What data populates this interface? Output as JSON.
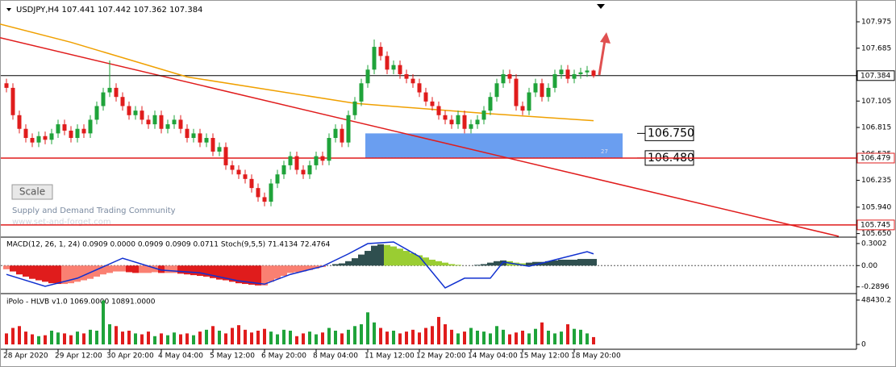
{
  "chart_data": {
    "type": "candlestick",
    "header": "USDJPY,H4  107.441 107.442 107.362 107.384",
    "scale_button": "Scale",
    "watermark": [
      "Supply and Demand Trading Community",
      "www.set-and-forget.com"
    ],
    "ylim": [
      105.62,
      108.17
    ],
    "yticks": [
      107.975,
      107.685,
      107.105,
      106.815,
      106.525,
      106.235,
      {
        "value": 105.94,
        "label": "105.940"
      },
      {
        "value": 105.65,
        "label": "105.650"
      }
    ],
    "xticks": [
      {
        "value": 0,
        "label": "28 Apr 2020"
      },
      {
        "value": 8,
        "label": "29 Apr 12:00"
      },
      {
        "value": 16,
        "label": "30 Apr 20:00"
      },
      {
        "value": 24,
        "label": "4 May 04:00"
      },
      {
        "value": 32,
        "label": "5 May 12:00"
      },
      {
        "value": 40,
        "label": "6 May 20:00"
      },
      {
        "value": 48,
        "label": "8 May 04:00"
      },
      {
        "value": 56,
        "label": "11 May 12:00"
      },
      {
        "value": 64,
        "label": "12 May 20:00"
      },
      {
        "value": 72,
        "label": "14 May 04:00"
      },
      {
        "value": 80,
        "label": "15 May 12:00"
      },
      {
        "value": 88,
        "label": "18 May 20:00"
      }
    ],
    "up_color": "#1fa33a",
    "down_color": "#e01c1c",
    "candles": [
      [
        107.3,
        107.35,
        107.2,
        107.25
      ],
      [
        107.25,
        107.3,
        106.9,
        106.95
      ],
      [
        106.95,
        107.0,
        106.75,
        106.8
      ],
      [
        106.8,
        106.85,
        106.65,
        106.7
      ],
      [
        106.7,
        106.75,
        106.6,
        106.65
      ],
      [
        106.65,
        106.77,
        106.6,
        106.72
      ],
      [
        106.72,
        106.77,
        106.63,
        106.68
      ],
      [
        106.68,
        106.8,
        106.63,
        106.75
      ],
      [
        106.75,
        106.9,
        106.7,
        106.85
      ],
      [
        106.85,
        106.9,
        106.73,
        106.78
      ],
      [
        106.78,
        106.83,
        106.65,
        106.7
      ],
      [
        106.7,
        106.85,
        106.65,
        106.8
      ],
      [
        106.8,
        106.85,
        106.7,
        106.75
      ],
      [
        106.75,
        106.95,
        106.7,
        106.9
      ],
      [
        106.9,
        107.1,
        106.85,
        107.05
      ],
      [
        107.05,
        107.25,
        107.0,
        107.2
      ],
      [
        107.2,
        107.55,
        107.15,
        107.25
      ],
      [
        107.25,
        107.3,
        107.1,
        107.15
      ],
      [
        107.15,
        107.2,
        107.0,
        107.05
      ],
      [
        107.05,
        107.1,
        106.9,
        106.95
      ],
      [
        106.95,
        107.05,
        106.9,
        107.0
      ],
      [
        107.0,
        107.05,
        106.85,
        106.9
      ],
      [
        106.9,
        106.95,
        106.8,
        106.85
      ],
      [
        106.85,
        107.0,
        106.8,
        106.95
      ],
      [
        106.95,
        107.0,
        106.75,
        106.8
      ],
      [
        106.8,
        106.9,
        106.75,
        106.85
      ],
      [
        106.85,
        106.95,
        106.8,
        106.9
      ],
      [
        106.9,
        106.95,
        106.75,
        106.8
      ],
      [
        106.8,
        106.85,
        106.65,
        106.7
      ],
      [
        106.7,
        106.8,
        106.65,
        106.75
      ],
      [
        106.75,
        106.8,
        106.6,
        106.65
      ],
      [
        106.65,
        106.75,
        106.6,
        106.7
      ],
      [
        106.7,
        106.75,
        106.5,
        106.55
      ],
      [
        106.55,
        106.65,
        106.5,
        106.6
      ],
      [
        106.6,
        106.65,
        106.35,
        106.4
      ],
      [
        106.4,
        106.45,
        106.3,
        106.35
      ],
      [
        106.35,
        106.4,
        106.25,
        106.3
      ],
      [
        106.3,
        106.35,
        106.2,
        106.25
      ],
      [
        106.25,
        106.3,
        106.1,
        106.15
      ],
      [
        106.15,
        106.2,
        106.0,
        106.05
      ],
      [
        106.05,
        106.1,
        105.95,
        106.0
      ],
      [
        106.0,
        106.25,
        105.95,
        106.2
      ],
      [
        106.2,
        106.35,
        106.15,
        106.3
      ],
      [
        106.3,
        106.45,
        106.25,
        106.4
      ],
      [
        106.4,
        106.55,
        106.35,
        106.5
      ],
      [
        106.5,
        106.55,
        106.3,
        106.35
      ],
      [
        106.35,
        106.4,
        106.25,
        106.3
      ],
      [
        106.3,
        106.45,
        106.25,
        106.4
      ],
      [
        106.4,
        106.55,
        106.35,
        106.5
      ],
      [
        106.5,
        106.55,
        106.4,
        106.45
      ],
      [
        106.45,
        106.75,
        106.4,
        106.7
      ],
      [
        106.7,
        106.85,
        106.65,
        106.8
      ],
      [
        106.8,
        106.85,
        106.6,
        106.65
      ],
      [
        106.65,
        107.0,
        106.6,
        106.95
      ],
      [
        106.95,
        107.15,
        106.9,
        107.1
      ],
      [
        107.1,
        107.35,
        107.05,
        107.3
      ],
      [
        107.3,
        107.5,
        107.25,
        107.45
      ],
      [
        107.45,
        107.78,
        107.4,
        107.7
      ],
      [
        107.7,
        107.75,
        107.55,
        107.6
      ],
      [
        107.6,
        107.65,
        107.4,
        107.45
      ],
      [
        107.45,
        107.55,
        107.4,
        107.5
      ],
      [
        107.5,
        107.55,
        107.35,
        107.4
      ],
      [
        107.4,
        107.45,
        107.3,
        107.35
      ],
      [
        107.35,
        107.4,
        107.25,
        107.3
      ],
      [
        107.3,
        107.35,
        107.15,
        107.2
      ],
      [
        107.2,
        107.25,
        107.05,
        107.1
      ],
      [
        107.1,
        107.15,
        107.0,
        107.05
      ],
      [
        107.05,
        107.1,
        106.9,
        106.95
      ],
      [
        106.95,
        107.0,
        106.85,
        106.9
      ],
      [
        106.9,
        106.95,
        106.8,
        106.85
      ],
      [
        106.85,
        107.0,
        106.8,
        106.95
      ],
      [
        106.95,
        107.0,
        106.75,
        106.8
      ],
      [
        106.8,
        106.9,
        106.75,
        106.85
      ],
      [
        106.85,
        106.95,
        106.8,
        106.9
      ],
      [
        106.9,
        107.05,
        106.85,
        107.0
      ],
      [
        107.0,
        107.2,
        106.95,
        107.15
      ],
      [
        107.15,
        107.35,
        107.1,
        107.3
      ],
      [
        107.3,
        107.45,
        107.25,
        107.4
      ],
      [
        107.4,
        107.45,
        107.3,
        107.35
      ],
      [
        107.35,
        107.4,
        107.0,
        107.05
      ],
      [
        107.05,
        107.1,
        106.95,
        107.0
      ],
      [
        107.0,
        107.25,
        106.95,
        107.2
      ],
      [
        107.2,
        107.35,
        107.15,
        107.3
      ],
      [
        107.3,
        107.35,
        107.1,
        107.15
      ],
      [
        107.15,
        107.3,
        107.1,
        107.25
      ],
      [
        107.25,
        107.45,
        107.2,
        107.4
      ],
      [
        107.4,
        107.5,
        107.35,
        107.45
      ],
      [
        107.45,
        107.5,
        107.3,
        107.35
      ],
      [
        107.35,
        107.45,
        107.3,
        107.4
      ],
      [
        107.4,
        107.47,
        107.35,
        107.42
      ],
      [
        107.42,
        107.49,
        107.37,
        107.44
      ],
      [
        107.44,
        107.45,
        107.36,
        107.38
      ]
    ],
    "moving_average": {
      "color": "#f0a000",
      "x": [
        -1,
        10,
        28,
        54,
        74,
        91
      ],
      "values": [
        107.95,
        107.75,
        107.37,
        107.08,
        106.97,
        106.89
      ]
    },
    "trendline": {
      "color": "#e01c1c",
      "x": [
        -1,
        129
      ],
      "values": [
        107.8,
        105.62
      ]
    },
    "hlines": {
      "values": [
        107.384,
        106.479,
        105.745
      ],
      "colors": [
        "#000000",
        "#e01c1c",
        "#e01c1c"
      ]
    },
    "zone": {
      "values": [
        106.75,
        106.48
      ],
      "value_labels": [
        "106.750",
        "106.480"
      ],
      "label": "27",
      "color": "#6a9ef0"
    },
    "macd": {
      "title": "MACD(12, 26, 1, 24) 0.0909 0.0000 0.0909 0.0909 0.0711  Stoch(9,5,5) 71.4134 72.4764",
      "ylim": [
        -0.37,
        0.365
      ],
      "yticks": [
        0.3002,
        {
          "value": 0,
          "label": "0.00"
        },
        -0.2896
      ],
      "values": [
        -0.05,
        -0.08,
        -0.12,
        -0.15,
        -0.18,
        -0.2,
        -0.22,
        -0.24,
        -0.25,
        -0.25,
        -0.24,
        -0.22,
        -0.2,
        -0.18,
        -0.15,
        -0.12,
        -0.1,
        -0.08,
        -0.08,
        -0.09,
        -0.1,
        -0.1,
        -0.1,
        -0.09,
        -0.1,
        -0.1,
        -0.1,
        -0.11,
        -0.12,
        -0.13,
        -0.14,
        -0.15,
        -0.17,
        -0.19,
        -0.2,
        -0.22,
        -0.24,
        -0.25,
        -0.26,
        -0.27,
        -0.27,
        -0.22,
        -0.18,
        -0.14,
        -0.1,
        -0.09,
        -0.08,
        -0.06,
        -0.04,
        -0.02,
        0.0,
        0.02,
        0.03,
        0.06,
        0.1,
        0.15,
        0.2,
        0.27,
        0.29,
        0.28,
        0.26,
        0.23,
        0.2,
        0.17,
        0.14,
        0.11,
        0.08,
        0.06,
        0.04,
        0.02,
        0.01,
        0.0,
        0.0,
        0.01,
        0.02,
        0.04,
        0.06,
        0.07,
        0.06,
        0.04,
        0.03,
        0.04,
        0.05,
        0.05,
        0.06,
        0.07,
        0.08,
        0.08,
        0.08,
        0.09,
        0.09,
        0.09
      ],
      "stoch": {
        "color": "#1030d0",
        "y2lim": [
          0,
          100
        ],
        "x": [
          0,
          6,
          11,
          18,
          24,
          30,
          36,
          40,
          44,
          49,
          53,
          56,
          60,
          64,
          68,
          71,
          75,
          77,
          81,
          85,
          90,
          91
        ],
        "values": [
          34,
          12,
          27,
          64,
          42,
          37,
          22,
          16,
          34,
          49,
          72,
          91,
          94,
          67,
          9,
          27,
          27,
          57,
          49,
          61,
          76,
          72
        ]
      }
    },
    "volume": {
      "title": "iPolo - HLVB v1.0 1069.0000 10891.0000",
      "ylim": [
        0,
        48430.2
      ],
      "yticks": [
        48430.2,
        0
      ],
      "values": [
        12000,
        18000,
        20000,
        14000,
        11000,
        9000,
        10000,
        15000,
        13000,
        12000,
        10000,
        14000,
        12000,
        16000,
        15000,
        48000,
        22000,
        20000,
        14000,
        15000,
        12000,
        11000,
        14000,
        9000,
        12000,
        10000,
        13000,
        11000,
        12000,
        10000,
        14000,
        16000,
        20000,
        15000,
        12000,
        18000,
        21000,
        16000,
        13000,
        15000,
        17000,
        14000,
        11000,
        16000,
        15000,
        9000,
        12000,
        14000,
        11000,
        13000,
        18000,
        15000,
        12000,
        16000,
        20000,
        22000,
        35000,
        24000,
        18000,
        14000,
        15000,
        12000,
        14000,
        16000,
        13000,
        18000,
        20000,
        30000,
        22000,
        16000,
        12000,
        14000,
        18000,
        15000,
        14000,
        12000,
        20000,
        16000,
        11000,
        13000,
        15000,
        12000,
        17000,
        24000,
        15000,
        12000,
        14000,
        22000,
        17000,
        16000,
        12000,
        8000
      ]
    }
  }
}
